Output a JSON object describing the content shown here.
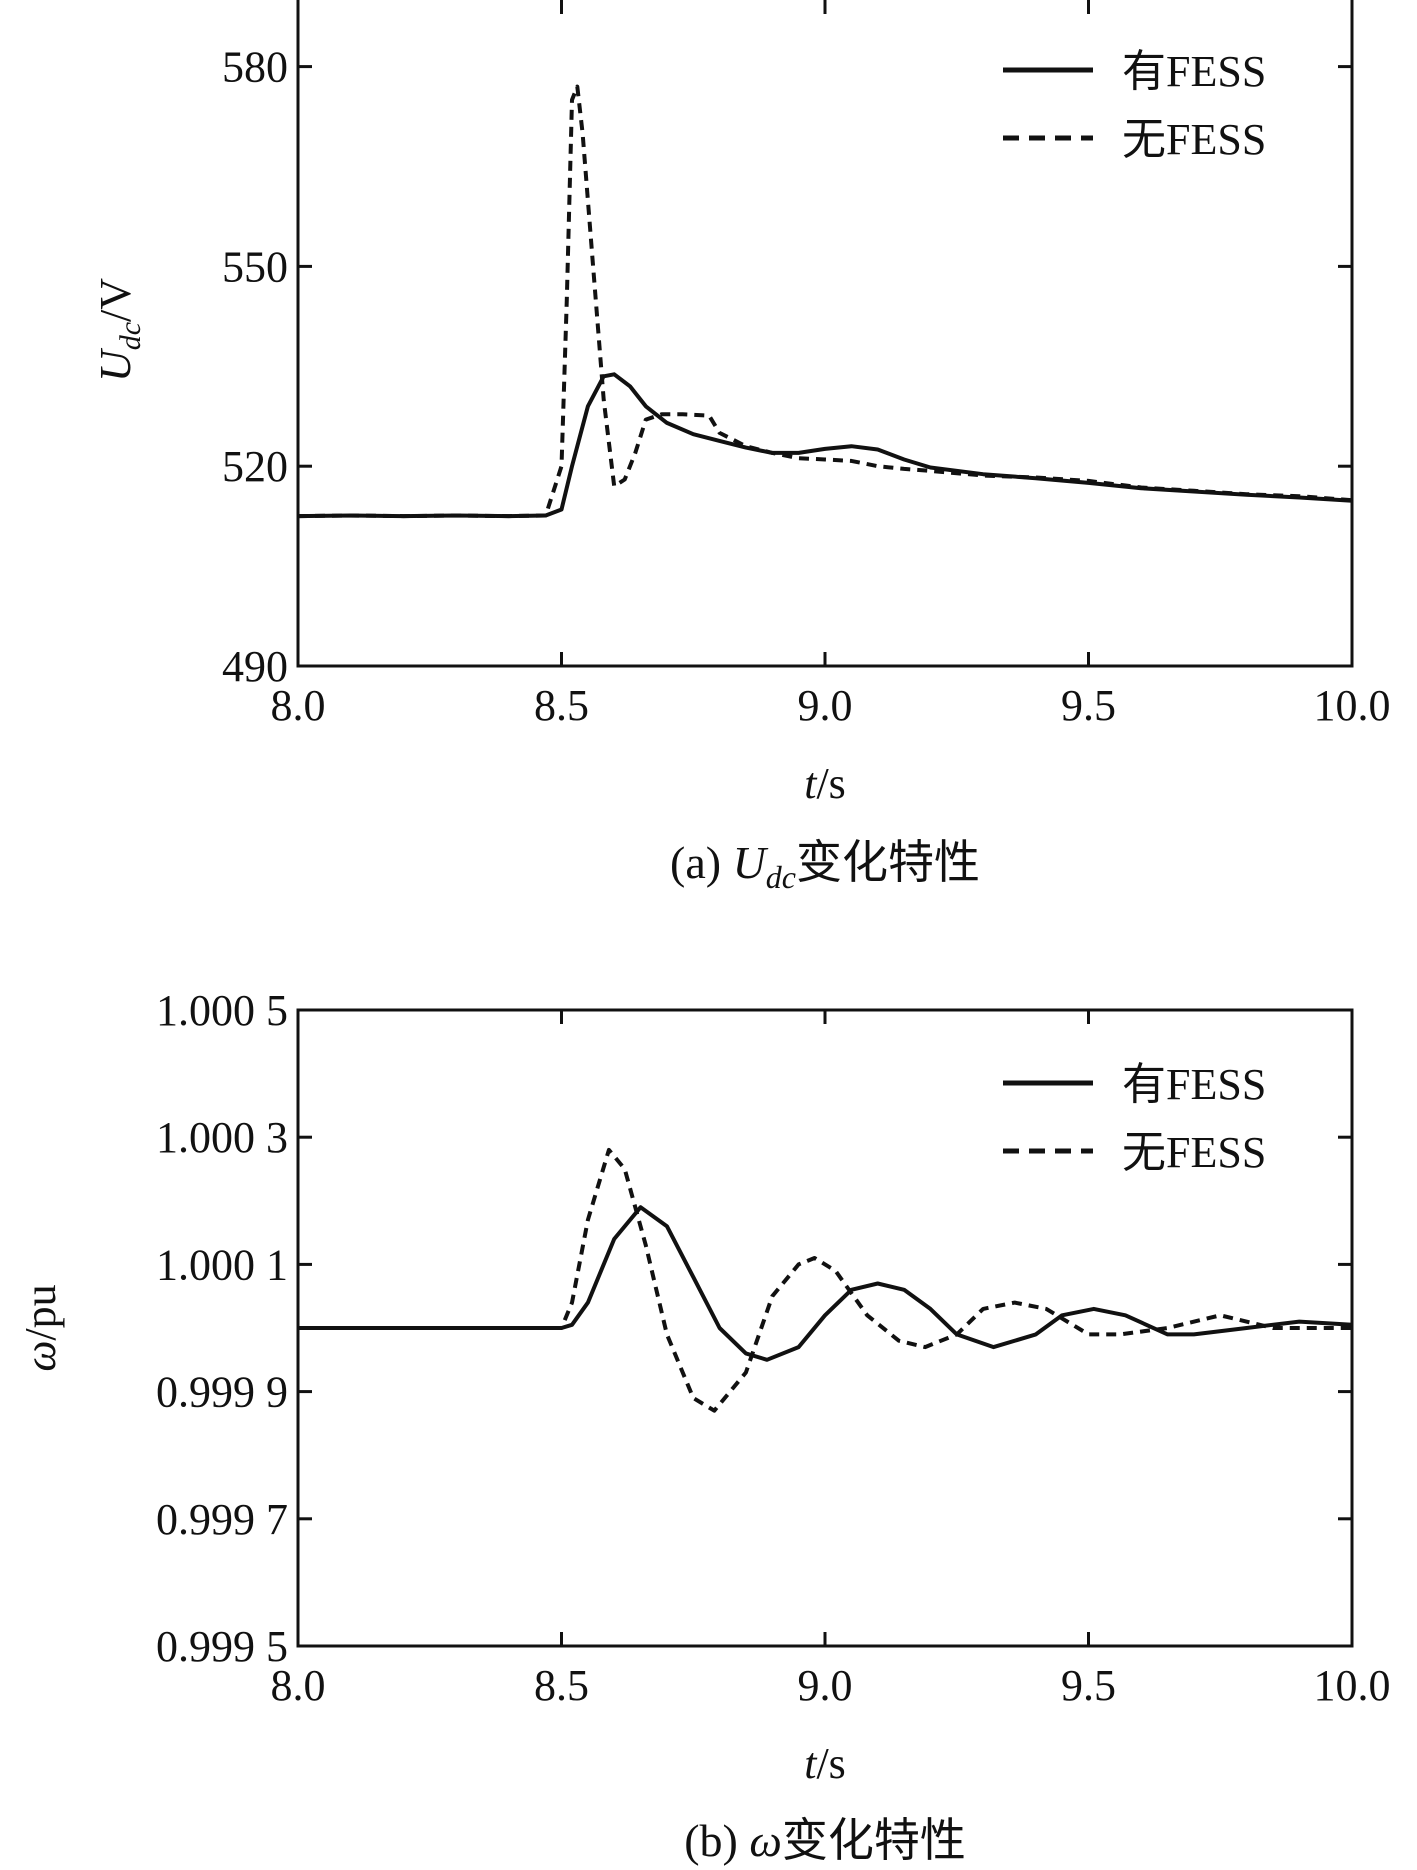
{
  "chart_data": [
    {
      "id": "a",
      "type": "line",
      "caption": {
        "prefix": "(a) ",
        "var_main": "U",
        "var_sub": "dc",
        "suffix": "变化特性"
      },
      "ylabel": {
        "main": "U",
        "sub": "dc",
        "unit": "/V"
      },
      "xlabel": {
        "var": "t",
        "unit": "/s"
      },
      "xlim": [
        8.0,
        10.0
      ],
      "ylim": [
        490,
        590
      ],
      "xticks": [
        8.0,
        8.5,
        9.0,
        9.5,
        10.0
      ],
      "xtick_labels": [
        "8.0",
        "8.5",
        "9.0",
        "9.5",
        "10.0"
      ],
      "yticks": [
        490,
        520,
        550,
        580
      ],
      "ytick_labels": [
        "490",
        "520",
        "550",
        "580"
      ],
      "legend": {
        "position": "top-right"
      },
      "series": [
        {
          "name": "有FESS",
          "style": "solid",
          "points": [
            [
              8.0,
              512.5
            ],
            [
              8.1,
              512.6
            ],
            [
              8.2,
              512.5
            ],
            [
              8.3,
              512.6
            ],
            [
              8.4,
              512.5
            ],
            [
              8.47,
              512.6
            ],
            [
              8.5,
              513.5
            ],
            [
              8.52,
              520
            ],
            [
              8.55,
              529
            ],
            [
              8.58,
              533.5
            ],
            [
              8.6,
              533.8
            ],
            [
              8.63,
              532
            ],
            [
              8.66,
              529
            ],
            [
              8.7,
              526.5
            ],
            [
              8.75,
              524.8
            ],
            [
              8.8,
              523.8
            ],
            [
              8.85,
              522.8
            ],
            [
              8.9,
              522
            ],
            [
              8.95,
              522
            ],
            [
              9.0,
              522.6
            ],
            [
              9.05,
              523
            ],
            [
              9.1,
              522.5
            ],
            [
              9.15,
              521
            ],
            [
              9.2,
              519.8
            ],
            [
              9.3,
              518.8
            ],
            [
              9.4,
              518.2
            ],
            [
              9.5,
              517.5
            ],
            [
              9.6,
              516.7
            ],
            [
              9.7,
              516.2
            ],
            [
              9.8,
              515.7
            ],
            [
              9.9,
              515.3
            ],
            [
              10.0,
              514.8
            ]
          ]
        },
        {
          "name": "无FESS",
          "style": "dashed",
          "points": [
            [
              8.0,
              512.5
            ],
            [
              8.1,
              512.6
            ],
            [
              8.2,
              512.5
            ],
            [
              8.3,
              512.6
            ],
            [
              8.4,
              512.5
            ],
            [
              8.47,
              512.6
            ],
            [
              8.5,
              520
            ],
            [
              8.51,
              545
            ],
            [
              8.52,
              575
            ],
            [
              8.53,
              577
            ],
            [
              8.54,
              570
            ],
            [
              8.56,
              550
            ],
            [
              8.58,
              530
            ],
            [
              8.6,
              517
            ],
            [
              8.62,
              518
            ],
            [
              8.64,
              522
            ],
            [
              8.66,
              527
            ],
            [
              8.69,
              527.8
            ],
            [
              8.73,
              527.8
            ],
            [
              8.78,
              527.6
            ],
            [
              8.8,
              525
            ],
            [
              8.85,
              523
            ],
            [
              8.9,
              522
            ],
            [
              8.95,
              521.2
            ],
            [
              9.0,
              521
            ],
            [
              9.05,
              520.8
            ],
            [
              9.1,
              520
            ],
            [
              9.15,
              519.6
            ],
            [
              9.2,
              519.3
            ],
            [
              9.3,
              518.6
            ],
            [
              9.4,
              518.3
            ],
            [
              9.5,
              517.8
            ],
            [
              9.6,
              516.8
            ],
            [
              9.7,
              516.3
            ],
            [
              9.8,
              515.8
            ],
            [
              9.9,
              515.5
            ],
            [
              10.0,
              514.9
            ]
          ]
        }
      ]
    },
    {
      "id": "b",
      "type": "line",
      "caption": {
        "prefix": "(b) ",
        "var_main": "ω",
        "var_sub": "",
        "suffix": "变化特性"
      },
      "ylabel": {
        "main": "ω",
        "sub": "",
        "unit": "/pu"
      },
      "xlabel": {
        "var": "t",
        "unit": "/s"
      },
      "xlim": [
        8.0,
        10.0
      ],
      "ylim": [
        0.9995,
        1.0005
      ],
      "xticks": [
        8.0,
        8.5,
        9.0,
        9.5,
        10.0
      ],
      "xtick_labels": [
        "8.0",
        "8.5",
        "9.0",
        "9.5",
        "10.0"
      ],
      "yticks": [
        0.9995,
        0.9997,
        0.9999,
        1.0001,
        1.0003,
        1.0005
      ],
      "ytick_labels": [
        "0.999 5",
        "0.999 7",
        "0.999 9",
        "1.000 1",
        "1.000 3",
        "1.000 5"
      ],
      "legend": {
        "position": "top-right"
      },
      "series": [
        {
          "name": "有FESS",
          "style": "solid",
          "points": [
            [
              8.0,
              1.0
            ],
            [
              8.5,
              1.0
            ],
            [
              8.52,
              1.000005
            ],
            [
              8.55,
              1.00004
            ],
            [
              8.6,
              1.00014
            ],
            [
              8.65,
              1.00019
            ],
            [
              8.7,
              1.00016
            ],
            [
              8.75,
              1.00008
            ],
            [
              8.8,
              1.0
            ],
            [
              8.85,
              0.99996
            ],
            [
              8.89,
              0.99995
            ],
            [
              8.95,
              0.99997
            ],
            [
              9.0,
              1.00002
            ],
            [
              9.05,
              1.00006
            ],
            [
              9.1,
              1.00007
            ],
            [
              9.15,
              1.00006
            ],
            [
              9.2,
              1.00003
            ],
            [
              9.25,
              0.99999
            ],
            [
              9.32,
              0.99997
            ],
            [
              9.4,
              0.99999
            ],
            [
              9.45,
              1.00002
            ],
            [
              9.51,
              1.00003
            ],
            [
              9.57,
              1.00002
            ],
            [
              9.65,
              0.99999
            ],
            [
              9.7,
              0.99999
            ],
            [
              9.8,
              1.0
            ],
            [
              9.9,
              1.00001
            ],
            [
              10.0,
              1.000005
            ]
          ]
        },
        {
          "name": "无FESS",
          "style": "dashed",
          "points": [
            [
              8.0,
              1.0
            ],
            [
              8.5,
              1.0
            ],
            [
              8.52,
              1.00004
            ],
            [
              8.55,
              1.00017
            ],
            [
              8.59,
              1.00028
            ],
            [
              8.62,
              1.00025
            ],
            [
              8.66,
              1.00013
            ],
            [
              8.7,
              0.99999
            ],
            [
              8.75,
              0.99989
            ],
            [
              8.79,
              0.99987
            ],
            [
              8.85,
              0.99993
            ],
            [
              8.9,
              1.00005
            ],
            [
              8.95,
              1.0001
            ],
            [
              8.98,
              1.00011
            ],
            [
              9.02,
              1.00009
            ],
            [
              9.08,
              1.00002
            ],
            [
              9.14,
              0.99998
            ],
            [
              9.19,
              0.99997
            ],
            [
              9.25,
              0.99999
            ],
            [
              9.3,
              1.00003
            ],
            [
              9.36,
              1.00004
            ],
            [
              9.42,
              1.00003
            ],
            [
              9.5,
              0.99999
            ],
            [
              9.56,
              0.99999
            ],
            [
              9.65,
              1.0
            ],
            [
              9.75,
              1.00002
            ],
            [
              9.85,
              1.0
            ],
            [
              10.0,
              1.0
            ]
          ]
        }
      ]
    }
  ]
}
